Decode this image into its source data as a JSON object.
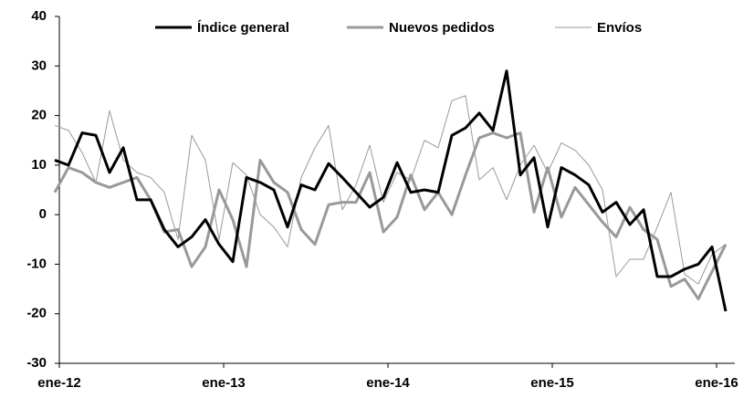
{
  "chart_data": {
    "type": "line",
    "categories": [
      "ene-12",
      null,
      null,
      null,
      null,
      null,
      null,
      null,
      null,
      null,
      null,
      null,
      "ene-13",
      null,
      null,
      null,
      null,
      null,
      null,
      null,
      null,
      null,
      null,
      null,
      "ene-14",
      null,
      null,
      null,
      null,
      null,
      null,
      null,
      null,
      null,
      null,
      null,
      "ene-15",
      null,
      null,
      null,
      null,
      null,
      null,
      null,
      null,
      null,
      null,
      null,
      "ene-16",
      null
    ],
    "series": [
      {
        "name": "Índice general",
        "color": "#000000",
        "line_width": 3,
        "values": [
          11,
          10,
          16.5,
          16,
          8.5,
          13.5,
          3,
          3,
          -3,
          -6.5,
          -4.5,
          -1,
          -6,
          -9.5,
          7.5,
          6.5,
          5,
          -2.5,
          6,
          5,
          10.3,
          7.5,
          4.5,
          1.5,
          3.5,
          10.5,
          4.5,
          5,
          4.5,
          16,
          17.5,
          20.5,
          17,
          29,
          8,
          11.5,
          -2.5,
          9.5,
          8,
          6,
          0.5,
          2.5,
          -2,
          1,
          -12.5,
          -12.5,
          -11,
          -10,
          -6.5,
          -19.5
        ]
      },
      {
        "name": "Nuevos pedidos",
        "color": "#999999",
        "line_width": 3,
        "values": [
          4.5,
          9.5,
          8.5,
          6.5,
          5.5,
          6.5,
          7.5,
          3,
          -3.5,
          -3,
          -10.5,
          -6.5,
          5,
          -1,
          -10.5,
          11,
          6.5,
          4.5,
          -3,
          -6,
          2,
          2.5,
          2.5,
          8.5,
          -3.5,
          -0.5,
          8,
          1,
          4.5,
          0,
          8,
          15.5,
          16.5,
          15.5,
          16.5,
          0.5,
          9.5,
          -0.5,
          5.5,
          2,
          -1.5,
          -4.5,
          1.5,
          -3,
          -5,
          -14.5,
          -13,
          -17,
          -11.5,
          -6
        ]
      },
      {
        "name": "Envíos",
        "color": "#999999",
        "line_width": 1,
        "values": [
          18,
          17,
          12.5,
          6.5,
          21,
          11,
          8.5,
          7.5,
          4.5,
          -5,
          16,
          11,
          -5,
          10.5,
          8,
          0,
          -2.5,
          -6.5,
          7.5,
          13.5,
          18,
          1,
          6,
          14,
          2.5,
          8.5,
          7,
          15,
          13.5,
          23,
          24,
          7,
          9.5,
          3,
          10,
          14,
          8.5,
          14.5,
          13,
          10,
          5,
          -12.5,
          -9,
          -9,
          -2.5,
          4.5,
          -12,
          -14,
          -8,
          -6
        ]
      }
    ],
    "ylim": [
      -30,
      40
    ],
    "yticks": [
      -30,
      -20,
      -10,
      0,
      10,
      20,
      30,
      40
    ],
    "grid": false,
    "legend": "top"
  }
}
